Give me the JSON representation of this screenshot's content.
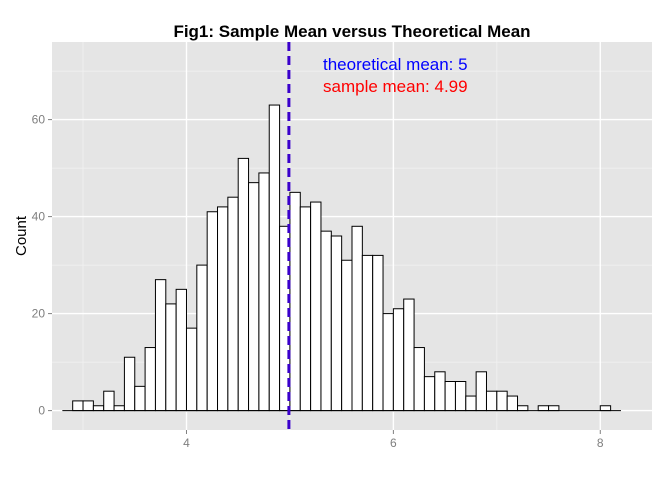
{
  "chart_data": {
    "type": "bar",
    "title": "Fig1: Sample Mean versus Theoretical Mean",
    "xlabel": "",
    "ylabel": "Count",
    "xlim": [
      2.7,
      8.5
    ],
    "ylim": [
      -4,
      76
    ],
    "x_ticks": [
      4,
      6,
      8
    ],
    "y_ticks": [
      0,
      20,
      40,
      60
    ],
    "bin_width": 0.1,
    "bin_starts": [
      2.9,
      3.0,
      3.1,
      3.2,
      3.3,
      3.4,
      3.5,
      3.6,
      3.7,
      3.8,
      3.9,
      4.0,
      4.1,
      4.2,
      4.3,
      4.4,
      4.5,
      4.6,
      4.7,
      4.8,
      4.9,
      5.0,
      5.1,
      5.2,
      5.3,
      5.4,
      5.5,
      5.6,
      5.7,
      5.8,
      5.9,
      6.0,
      6.1,
      6.2,
      6.3,
      6.4,
      6.5,
      6.6,
      6.7,
      6.8,
      6.9,
      7.0,
      7.1,
      7.2,
      7.3,
      7.4,
      7.5,
      7.6,
      7.7,
      7.8,
      7.9,
      8.0
    ],
    "counts": [
      2,
      2,
      1,
      4,
      1,
      11,
      5,
      13,
      27,
      22,
      25,
      17,
      30,
      41,
      42,
      44,
      52,
      47,
      49,
      63,
      38,
      45,
      42,
      43,
      37,
      36,
      31,
      38,
      32,
      32,
      20,
      21,
      23,
      13,
      7,
      8,
      6,
      6,
      3,
      8,
      4,
      4,
      3,
      1,
      0,
      1,
      1,
      0,
      0,
      0,
      0,
      1
    ],
    "baseline": [
      2.8,
      8.2
    ],
    "theoretical_mean": 5,
    "sample_mean": 4.99,
    "annotations": {
      "theoretical": "theoretical mean: 5",
      "sample": "sample mean: 4.99"
    },
    "colors": {
      "panel": "#e5e5e5",
      "grid_major": "#ffffff",
      "grid_minor": "#f2f2f2",
      "bar_fill": "#ffffff",
      "bar_outline": "#000000",
      "mean_line": "#3a00cc",
      "theoretical_text": "#0000ff",
      "sample_text": "#ff0000"
    },
    "grid": true
  }
}
